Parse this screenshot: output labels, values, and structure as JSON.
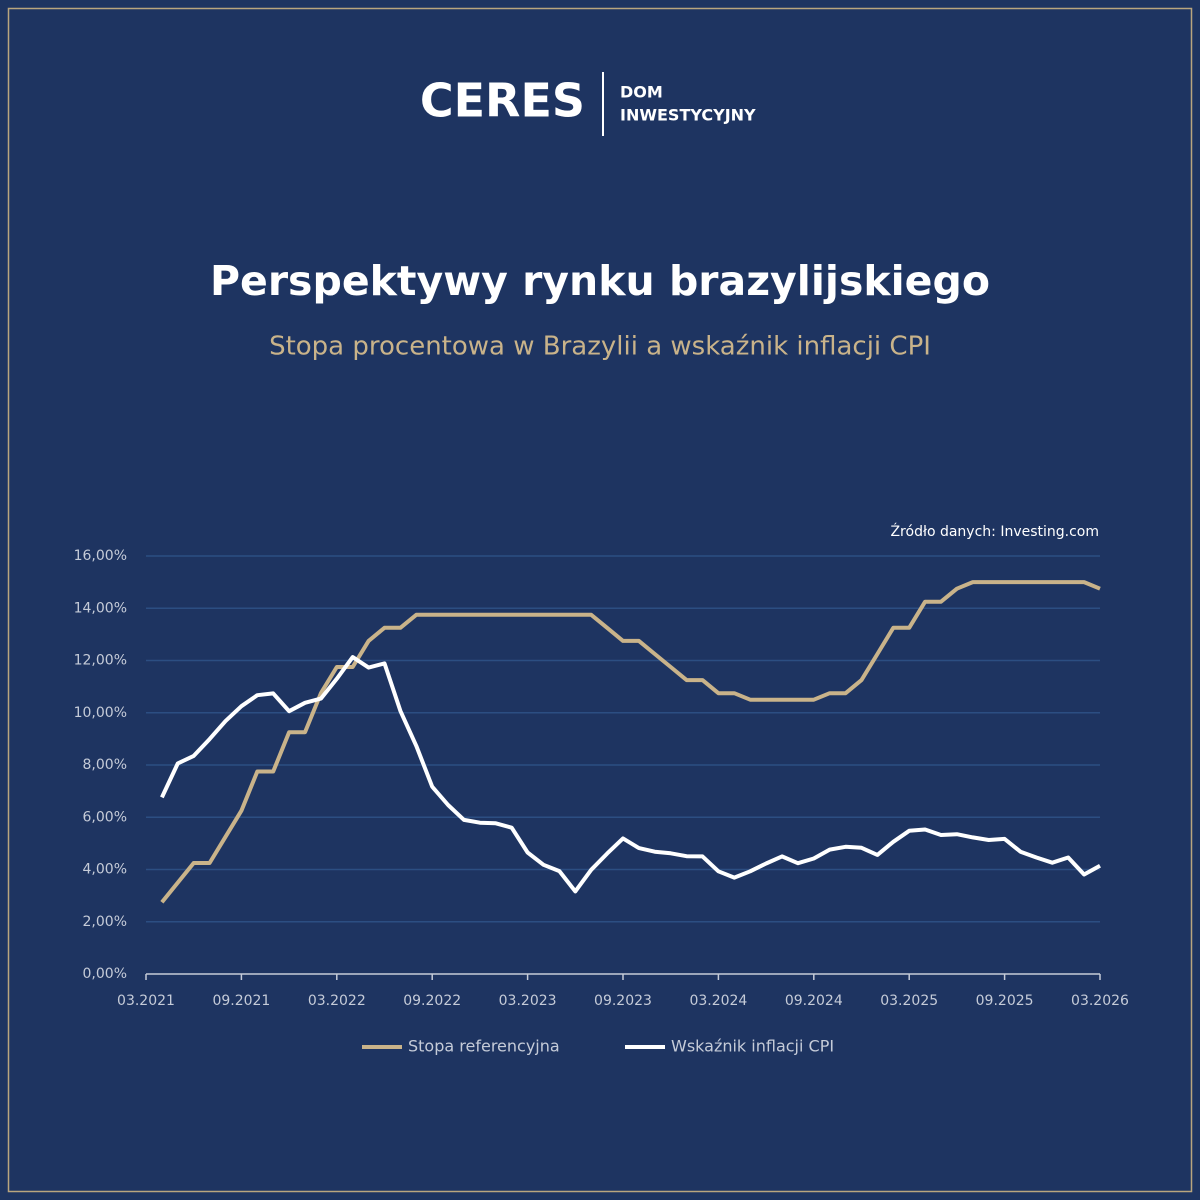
{
  "logo": {
    "name": "CERES",
    "tagline": [
      "DOM",
      "INWESTYCYJNY"
    ]
  },
  "chart_data": {
    "type": "line",
    "title": "Perspektywy rynku brazylijskiego",
    "subtitle": "Stopa procentowa w Brazylii a wskaźnik inflacji CPI",
    "source": "Źródło danych: Investing.com",
    "x": [
      "04.2021",
      "05.2021",
      "06.2021",
      "07.2021",
      "08.2021",
      "09.2021",
      "10.2021",
      "11.2021",
      "12.2021",
      "01.2022",
      "02.2022",
      "03.2022",
      "04.2022",
      "05.2022",
      "06.2022",
      "07.2022",
      "08.2022",
      "09.2022",
      "10.2022",
      "11.2022",
      "12.2022",
      "01.2023",
      "02.2023",
      "03.2023",
      "04.2023",
      "05.2023",
      "06.2023",
      "07.2023",
      "08.2023",
      "09.2023",
      "10.2023",
      "11.2023",
      "12.2023",
      "01.2024",
      "02.2024",
      "03.2024",
      "04.2024",
      "05.2024",
      "06.2024",
      "07.2024",
      "08.2024",
      "09.2024",
      "10.2024",
      "11.2024",
      "12.2024",
      "01.2025",
      "02.2025",
      "03.2025",
      "04.2025",
      "05.2025",
      "06.2025",
      "07.2025",
      "08.2025",
      "09.2025",
      "10.2025",
      "11.2025",
      "12.2025",
      "01.2026",
      "02.2026",
      "03.2026"
    ],
    "xticks": [
      "03.2021",
      "09.2021",
      "03.2022",
      "09.2022",
      "03.2023",
      "09.2023",
      "03.2024",
      "09.2024",
      "03.2025",
      "09.2025",
      "03.2026"
    ],
    "ylim": [
      0,
      16
    ],
    "yticks": [
      {
        "value": 0,
        "label": "0,00%"
      },
      {
        "value": 2,
        "label": "2,00%"
      },
      {
        "value": 4,
        "label": "4,00%"
      },
      {
        "value": 6,
        "label": "6,00%"
      },
      {
        "value": 8,
        "label": "8,00%"
      },
      {
        "value": 10,
        "label": "10,00%"
      },
      {
        "value": 12,
        "label": "12,00%"
      },
      {
        "value": 14,
        "label": "14,00%"
      },
      {
        "value": 16,
        "label": "16,00%"
      }
    ],
    "grid": true,
    "series": [
      {
        "name": "Stopa referencyjna",
        "color": "#c9b38a",
        "values": [
          2.75,
          3.5,
          4.25,
          4.25,
          5.25,
          6.25,
          7.75,
          7.75,
          9.25,
          9.25,
          10.75,
          11.75,
          11.75,
          12.75,
          13.25,
          13.25,
          13.75,
          13.75,
          13.75,
          13.75,
          13.75,
          13.75,
          13.75,
          13.75,
          13.75,
          13.75,
          13.75,
          13.75,
          13.25,
          12.75,
          12.75,
          12.25,
          11.75,
          11.25,
          11.25,
          10.75,
          10.75,
          10.5,
          10.5,
          10.5,
          10.5,
          10.5,
          10.75,
          10.75,
          11.25,
          12.25,
          13.25,
          13.25,
          14.25,
          14.25,
          14.75,
          15,
          15,
          15,
          15,
          15,
          15,
          15,
          15,
          14.75
        ]
      },
      {
        "name": "Wskaźnik inflacji CPI",
        "color": "#ffffff",
        "values": [
          6.76,
          8.06,
          8.35,
          8.99,
          9.68,
          10.25,
          10.67,
          10.74,
          10.06,
          10.38,
          10.54,
          11.3,
          12.13,
          11.73,
          11.89,
          10.07,
          8.73,
          7.17,
          6.47,
          5.9,
          5.79,
          5.77,
          5.6,
          4.65,
          4.18,
          3.94,
          3.16,
          3.99,
          4.61,
          5.19,
          4.82,
          4.68,
          4.62,
          4.51,
          4.5,
          3.93,
          3.69,
          3.93,
          4.23,
          4.5,
          4.24,
          4.42,
          4.76,
          4.87,
          4.83,
          4.56,
          5.06,
          5.48,
          5.53,
          5.32,
          5.35,
          5.23,
          5.13,
          5.17,
          4.68,
          4.46,
          4.26,
          4.46,
          3.81,
          4.14
        ]
      }
    ]
  }
}
